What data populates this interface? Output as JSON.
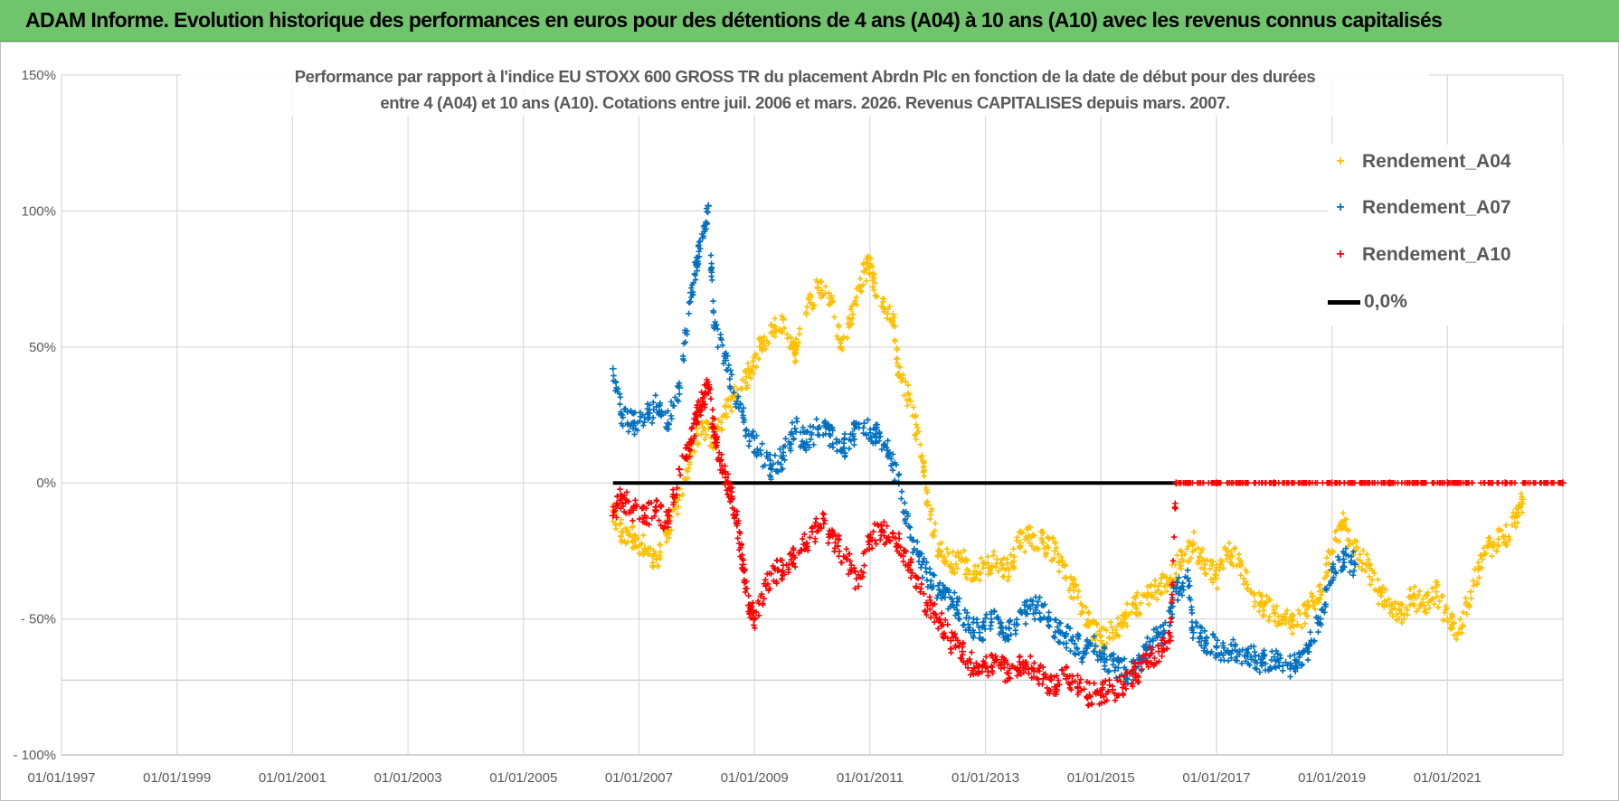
{
  "header": {
    "title": "ADAM Informe. Evolution historique des performances en euros pour des détentions de 4 ans (A04) à 10 ans (A10) avec les revenus connus capitalisés"
  },
  "chart": {
    "title_line1": "Performance par rapport à l'indice EU STOXX 600 GROSS TR  du placement Abrdn Plc en fonction de la date de début pour des durées",
    "title_line2": "entre 4 (A04) et 10 ans (A10). Cotations entre juil. 2006 et mars. 2026. Revenus CAPITALISES depuis mars. 2007."
  },
  "legend": {
    "a04": "Rendement_A04",
    "a07": "Rendement_A07",
    "a10": "Rendement_A10",
    "zero": "0,0%"
  },
  "colors": {
    "a04": "#ffc000",
    "a07": "#0070c0",
    "a10": "#ff0000",
    "zero": "#000000",
    "grid": "#d9d9d9",
    "text": "#595959"
  },
  "chart_data": {
    "type": "scatter",
    "xlabel": "",
    "ylabel": "",
    "x_ticks": [
      "01/01/1997",
      "01/01/1999",
      "01/01/2001",
      "01/01/2003",
      "01/01/2005",
      "01/01/2007",
      "01/01/2009",
      "01/01/2011",
      "01/01/2013",
      "01/01/2015",
      "01/01/2017",
      "01/01/2019",
      "01/01/2021"
    ],
    "x_range": [
      1997.0,
      2023.0
    ],
    "ylim": [
      -100,
      150
    ],
    "y_ticks": [
      150,
      100,
      50,
      0,
      -50,
      -100
    ],
    "y_tick_labels": [
      "150%",
      "100%",
      "50%",
      "0%",
      "- 50%",
      "- 100%"
    ],
    "series": [
      {
        "name": "Rendement_A04",
        "key": "a04",
        "points": [
          [
            2006.55,
            -10
          ],
          [
            2006.7,
            -18
          ],
          [
            2006.9,
            -20
          ],
          [
            2007.1,
            -24
          ],
          [
            2007.3,
            -28
          ],
          [
            2007.5,
            -18
          ],
          [
            2007.7,
            -5
          ],
          [
            2007.9,
            10
          ],
          [
            2008.1,
            22
          ],
          [
            2008.3,
            15
          ],
          [
            2008.5,
            28
          ],
          [
            2008.7,
            32
          ],
          [
            2008.9,
            40
          ],
          [
            2009.1,
            50
          ],
          [
            2009.3,
            55
          ],
          [
            2009.5,
            60
          ],
          [
            2009.7,
            48
          ],
          [
            2009.9,
            62
          ],
          [
            2010.1,
            72
          ],
          [
            2010.3,
            68
          ],
          [
            2010.5,
            50
          ],
          [
            2010.7,
            62
          ],
          [
            2010.9,
            78
          ],
          [
            2011.0,
            80
          ],
          [
            2011.2,
            65
          ],
          [
            2011.4,
            62
          ],
          [
            2011.5,
            40
          ],
          [
            2011.7,
            30
          ],
          [
            2011.9,
            10
          ],
          [
            2012.0,
            -8
          ],
          [
            2012.2,
            -25
          ],
          [
            2012.4,
            -30
          ],
          [
            2012.6,
            -28
          ],
          [
            2012.8,
            -35
          ],
          [
            2013.0,
            -30
          ],
          [
            2013.2,
            -28
          ],
          [
            2013.4,
            -32
          ],
          [
            2013.6,
            -22
          ],
          [
            2013.8,
            -20
          ],
          [
            2014.0,
            -22
          ],
          [
            2014.2,
            -25
          ],
          [
            2014.4,
            -35
          ],
          [
            2014.6,
            -42
          ],
          [
            2014.8,
            -52
          ],
          [
            2015.0,
            -58
          ],
          [
            2015.2,
            -55
          ],
          [
            2015.4,
            -50
          ],
          [
            2015.6,
            -45
          ],
          [
            2015.8,
            -42
          ],
          [
            2016.0,
            -38
          ],
          [
            2016.2,
            -35
          ],
          [
            2016.4,
            -28
          ],
          [
            2016.6,
            -22
          ],
          [
            2016.8,
            -30
          ],
          [
            2017.0,
            -35
          ],
          [
            2017.2,
            -25
          ],
          [
            2017.4,
            -30
          ],
          [
            2017.6,
            -40
          ],
          [
            2017.8,
            -45
          ],
          [
            2018.0,
            -48
          ],
          [
            2018.2,
            -50
          ],
          [
            2018.4,
            -52
          ],
          [
            2018.6,
            -45
          ],
          [
            2018.8,
            -40
          ],
          [
            2019.0,
            -25
          ],
          [
            2019.2,
            -15
          ],
          [
            2019.4,
            -25
          ],
          [
            2019.6,
            -30
          ],
          [
            2019.8,
            -40
          ],
          [
            2020.0,
            -45
          ],
          [
            2020.2,
            -48
          ],
          [
            2020.4,
            -42
          ],
          [
            2020.6,
            -45
          ],
          [
            2020.8,
            -40
          ],
          [
            2021.0,
            -50
          ],
          [
            2021.2,
            -55
          ],
          [
            2021.4,
            -40
          ],
          [
            2021.6,
            -28
          ],
          [
            2021.8,
            -22
          ],
          [
            2022.0,
            -20
          ],
          [
            2022.2,
            -12
          ],
          [
            2022.3,
            -6
          ]
        ]
      },
      {
        "name": "Rendement_A07",
        "key": "a07",
        "points": [
          [
            2006.55,
            42
          ],
          [
            2006.7,
            25
          ],
          [
            2006.9,
            22
          ],
          [
            2007.1,
            24
          ],
          [
            2007.3,
            28
          ],
          [
            2007.5,
            22
          ],
          [
            2007.7,
            35
          ],
          [
            2007.9,
            70
          ],
          [
            2008.0,
            80
          ],
          [
            2008.1,
            90
          ],
          [
            2008.2,
            102
          ],
          [
            2008.3,
            58
          ],
          [
            2008.5,
            45
          ],
          [
            2008.7,
            30
          ],
          [
            2008.9,
            18
          ],
          [
            2009.1,
            12
          ],
          [
            2009.3,
            5
          ],
          [
            2009.5,
            10
          ],
          [
            2009.7,
            20
          ],
          [
            2009.9,
            15
          ],
          [
            2010.1,
            20
          ],
          [
            2010.3,
            18
          ],
          [
            2010.5,
            12
          ],
          [
            2010.7,
            18
          ],
          [
            2010.9,
            22
          ],
          [
            2011.1,
            18
          ],
          [
            2011.3,
            12
          ],
          [
            2011.5,
            0
          ],
          [
            2011.7,
            -20
          ],
          [
            2011.9,
            -30
          ],
          [
            2012.1,
            -38
          ],
          [
            2012.3,
            -42
          ],
          [
            2012.5,
            -45
          ],
          [
            2012.7,
            -52
          ],
          [
            2012.9,
            -55
          ],
          [
            2013.1,
            -50
          ],
          [
            2013.3,
            -55
          ],
          [
            2013.5,
            -52
          ],
          [
            2013.7,
            -48
          ],
          [
            2013.9,
            -45
          ],
          [
            2014.1,
            -50
          ],
          [
            2014.3,
            -55
          ],
          [
            2014.5,
            -58
          ],
          [
            2014.7,
            -62
          ],
          [
            2014.9,
            -60
          ],
          [
            2015.1,
            -65
          ],
          [
            2015.3,
            -68
          ],
          [
            2015.5,
            -70
          ],
          [
            2015.7,
            -65
          ],
          [
            2015.9,
            -58
          ],
          [
            2016.1,
            -55
          ],
          [
            2016.3,
            -40
          ],
          [
            2016.5,
            -35
          ],
          [
            2016.6,
            -55
          ],
          [
            2016.8,
            -58
          ],
          [
            2017.0,
            -60
          ],
          [
            2017.2,
            -62
          ],
          [
            2017.4,
            -62
          ],
          [
            2017.6,
            -64
          ],
          [
            2017.8,
            -66
          ],
          [
            2018.0,
            -64
          ],
          [
            2018.2,
            -66
          ],
          [
            2018.4,
            -68
          ],
          [
            2018.6,
            -60
          ],
          [
            2018.8,
            -50
          ],
          [
            2019.0,
            -32
          ],
          [
            2019.2,
            -28
          ],
          [
            2019.4,
            -30
          ]
        ]
      },
      {
        "name": "Rendement_A10",
        "key": "a10",
        "points": [
          [
            2006.55,
            -12
          ],
          [
            2006.7,
            -5
          ],
          [
            2006.9,
            -10
          ],
          [
            2007.1,
            -12
          ],
          [
            2007.3,
            -10
          ],
          [
            2007.5,
            -15
          ],
          [
            2007.7,
            5
          ],
          [
            2007.9,
            15
          ],
          [
            2008.0,
            25
          ],
          [
            2008.1,
            30
          ],
          [
            2008.2,
            35
          ],
          [
            2008.3,
            20
          ],
          [
            2008.4,
            8
          ],
          [
            2008.5,
            2
          ],
          [
            2008.6,
            -5
          ],
          [
            2008.7,
            -15
          ],
          [
            2008.8,
            -30
          ],
          [
            2008.9,
            -45
          ],
          [
            2009.0,
            -50
          ],
          [
            2009.2,
            -38
          ],
          [
            2009.4,
            -32
          ],
          [
            2009.6,
            -30
          ],
          [
            2009.8,
            -25
          ],
          [
            2010.0,
            -18
          ],
          [
            2010.2,
            -15
          ],
          [
            2010.4,
            -22
          ],
          [
            2010.6,
            -28
          ],
          [
            2010.8,
            -38
          ],
          [
            2011.0,
            -20
          ],
          [
            2011.2,
            -18
          ],
          [
            2011.4,
            -20
          ],
          [
            2011.6,
            -25
          ],
          [
            2011.8,
            -38
          ],
          [
            2012.0,
            -45
          ],
          [
            2012.2,
            -50
          ],
          [
            2012.4,
            -58
          ],
          [
            2012.6,
            -62
          ],
          [
            2012.8,
            -68
          ],
          [
            2013.0,
            -68
          ],
          [
            2013.2,
            -65
          ],
          [
            2013.4,
            -70
          ],
          [
            2013.6,
            -68
          ],
          [
            2013.8,
            -68
          ],
          [
            2014.0,
            -72
          ],
          [
            2014.2,
            -75
          ],
          [
            2014.4,
            -72
          ],
          [
            2014.6,
            -75
          ],
          [
            2014.8,
            -78
          ],
          [
            2015.0,
            -78
          ],
          [
            2015.2,
            -76
          ],
          [
            2015.4,
            -74
          ],
          [
            2015.6,
            -70
          ],
          [
            2015.8,
            -66
          ],
          [
            2016.0,
            -62
          ],
          [
            2016.2,
            -58
          ],
          [
            2016.3,
            0
          ],
          [
            2017.0,
            0
          ],
          [
            2018.0,
            0
          ],
          [
            2019.0,
            0
          ],
          [
            2020.0,
            0
          ],
          [
            2021.0,
            0
          ],
          [
            2022.0,
            0
          ],
          [
            2023.0,
            0
          ]
        ]
      },
      {
        "name": "0,0%",
        "key": "zero",
        "style": "line",
        "points": [
          [
            2006.55,
            0
          ],
          [
            2016.3,
            0
          ]
        ]
      }
    ]
  }
}
